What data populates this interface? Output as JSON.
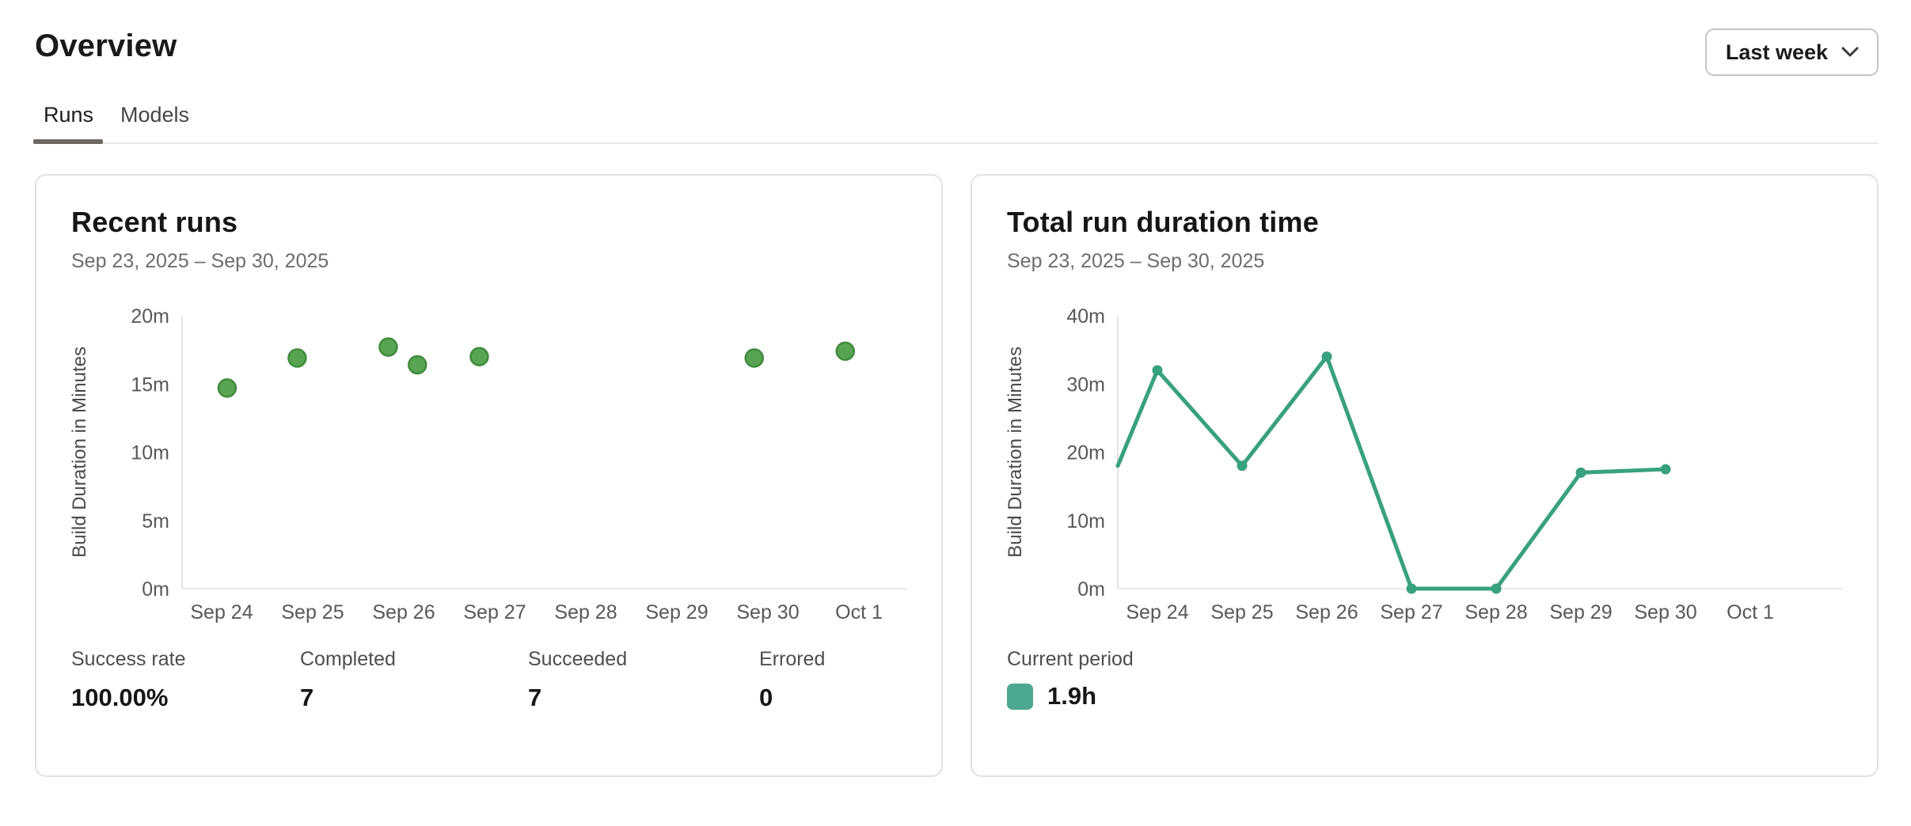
{
  "page": {
    "title": "Overview"
  },
  "period_selector": {
    "label": "Last week"
  },
  "tabs": [
    {
      "label": "Runs",
      "active": true
    },
    {
      "label": "Models",
      "active": false
    }
  ],
  "colors": {
    "scatter_point_fill": "#58A452",
    "scatter_point_stroke": "#3F8C3C",
    "line_stroke": "#38A17F",
    "legend_swatch": "#4BA78F",
    "axis_line": "#E7E5E2",
    "baseline": "#EDEBE8"
  },
  "cards": [
    {
      "title": "Recent runs",
      "subtitle": "Sep 23, 2025 – Sep 30, 2025",
      "stats": [
        {
          "label": "Success rate",
          "value": "100.00%"
        },
        {
          "label": "Completed",
          "value": "7"
        },
        {
          "label": "Succeeded",
          "value": "7"
        },
        {
          "label": "Errored",
          "value": "0"
        }
      ]
    },
    {
      "title": "Total run duration time",
      "subtitle": "Sep 23, 2025 – Sep 30, 2025",
      "legend": {
        "label": "Current period",
        "value": "1.9h",
        "swatch_color": "#4BA78F"
      }
    }
  ],
  "chart_data": [
    {
      "type": "scatter",
      "title": "Recent runs",
      "ylabel": "Build Duration in Minutes",
      "x_ticks": [
        "Sep 24",
        "Sep 25",
        "Sep 26",
        "Sep 27",
        "Sep 28",
        "Sep 29",
        "Sep 30",
        "Oct 1"
      ],
      "y_ticks": [
        "0m",
        "5m",
        "10m",
        "15m",
        "20m"
      ],
      "ylim": [
        0,
        20
      ],
      "grid": false,
      "points": [
        {
          "x_day": 0.06,
          "minutes": 14.7
        },
        {
          "x_day": 0.83,
          "minutes": 16.9
        },
        {
          "x_day": 1.83,
          "minutes": 17.7
        },
        {
          "x_day": 2.15,
          "minutes": 16.4
        },
        {
          "x_day": 2.83,
          "minutes": 17.0
        },
        {
          "x_day": 5.85,
          "minutes": 16.9
        },
        {
          "x_day": 6.85,
          "minutes": 17.4
        }
      ],
      "point_color": "#58A452",
      "point_stroke": "#3F8C3C"
    },
    {
      "type": "line",
      "title": "Total run duration time",
      "ylabel": "Build Duration in Minutes",
      "x_ticks": [
        "Sep 24",
        "Sep 25",
        "Sep 26",
        "Sep 27",
        "Sep 28",
        "Sep 29",
        "Sep 30",
        "Oct 1"
      ],
      "y_ticks": [
        "0m",
        "10m",
        "20m",
        "30m",
        "40m"
      ],
      "ylim": [
        0,
        40
      ],
      "grid": false,
      "edge_start": {
        "minutes": 18
      },
      "points": [
        {
          "x_day": 0,
          "minutes": 32,
          "tick": "Sep 24"
        },
        {
          "x_day": 1,
          "minutes": 18,
          "tick": "Sep 25"
        },
        {
          "x_day": 2,
          "minutes": 34,
          "tick": "Sep 26"
        },
        {
          "x_day": 3,
          "minutes": 0,
          "tick": "Sep 27"
        },
        {
          "x_day": 4,
          "minutes": 0,
          "tick": "Sep 28"
        },
        {
          "x_day": 5,
          "minutes": 17,
          "tick": "Sep 29"
        },
        {
          "x_day": 6,
          "minutes": 17.5,
          "tick": "Sep 30"
        }
      ],
      "line_color": "#38A17F"
    }
  ]
}
